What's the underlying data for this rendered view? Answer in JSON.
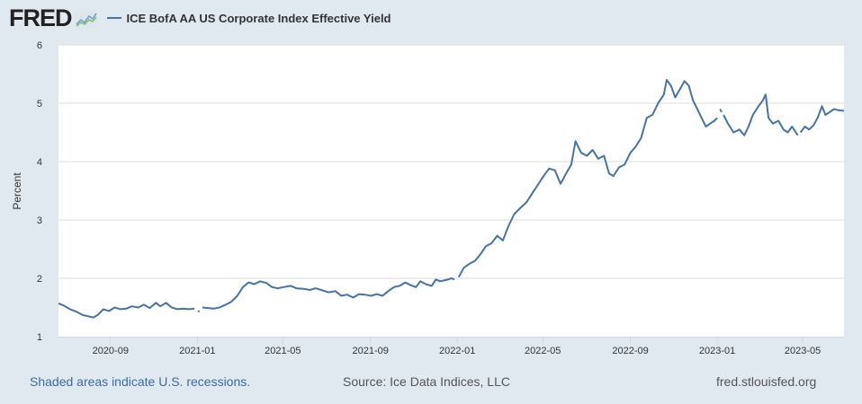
{
  "header": {
    "logo_text": "FRED",
    "logo_icon": "fred-chart-icon",
    "legend_label": "ICE BofA AA US Corporate Index Effective Yield"
  },
  "footer": {
    "recession_note": "Shaded areas indicate U.S. recessions.",
    "source": "Source: Ice Data Indices, LLC",
    "site": "fred.stlouisfed.org"
  },
  "colors": {
    "series": "#4572a7",
    "background": "#e1e9f0",
    "plot_background": "#ffffff",
    "gridline": "#dddddd"
  },
  "chart_data": {
    "type": "line",
    "title": "ICE BofA AA US Corporate Index Effective Yield",
    "xlabel": "",
    "ylabel": "Percent",
    "ylim": [
      1,
      6
    ],
    "xlim": [
      "2020-06-20",
      "2023-06-28"
    ],
    "yticks": [
      "1",
      "2",
      "3",
      "4",
      "5",
      "6"
    ],
    "xticks": [
      "2020-09",
      "2021-01",
      "2021-05",
      "2021-09",
      "2022-01",
      "2022-05",
      "2022-09",
      "2023-01",
      "2023-05"
    ],
    "grid": true,
    "legend": "top-left",
    "series": [
      {
        "name": "ICE BofA AA US Corporate Index Effective Yield",
        "segments": [
          [
            [
              "2020-06-20",
              1.57
            ],
            [
              "2020-06-28",
              1.53
            ],
            [
              "2020-07-06",
              1.47
            ],
            [
              "2020-07-15",
              1.43
            ],
            [
              "2020-07-24",
              1.37
            ],
            [
              "2020-08-01",
              1.35
            ],
            [
              "2020-08-08",
              1.33
            ],
            [
              "2020-08-14",
              1.37
            ],
            [
              "2020-08-22",
              1.47
            ],
            [
              "2020-08-30",
              1.44
            ],
            [
              "2020-09-07",
              1.5
            ],
            [
              "2020-09-15",
              1.47
            ],
            [
              "2020-09-23",
              1.48
            ],
            [
              "2020-10-01",
              1.52
            ],
            [
              "2020-10-10",
              1.5
            ],
            [
              "2020-10-18",
              1.55
            ],
            [
              "2020-10-26",
              1.49
            ],
            [
              "2020-11-04",
              1.58
            ],
            [
              "2020-11-10",
              1.52
            ],
            [
              "2020-11-18",
              1.58
            ],
            [
              "2020-11-26",
              1.5
            ],
            [
              "2020-12-04",
              1.47
            ],
            [
              "2020-12-12",
              1.48
            ],
            [
              "2020-12-20",
              1.47
            ],
            [
              "2020-12-28",
              1.48
            ]
          ],
          [
            [
              "2021-01-02",
              1.44
            ],
            [
              "2021-01-04",
              1.43
            ]
          ],
          [
            [
              "2021-01-08",
              1.5
            ],
            [
              "2021-01-16",
              1.49
            ],
            [
              "2021-01-24",
              1.48
            ],
            [
              "2021-02-01",
              1.5
            ],
            [
              "2021-02-10",
              1.55
            ],
            [
              "2021-02-18",
              1.6
            ],
            [
              "2021-02-26",
              1.7
            ],
            [
              "2021-03-06",
              1.85
            ],
            [
              "2021-03-14",
              1.93
            ],
            [
              "2021-03-22",
              1.9
            ],
            [
              "2021-03-30",
              1.95
            ],
            [
              "2021-04-08",
              1.92
            ],
            [
              "2021-04-16",
              1.85
            ],
            [
              "2021-04-24",
              1.83
            ],
            [
              "2021-05-02",
              1.85
            ],
            [
              "2021-05-12",
              1.87
            ],
            [
              "2021-05-20",
              1.83
            ],
            [
              "2021-05-30",
              1.82
            ],
            [
              "2021-06-08",
              1.8
            ],
            [
              "2021-06-16",
              1.83
            ],
            [
              "2021-06-24",
              1.8
            ],
            [
              "2021-07-04",
              1.76
            ],
            [
              "2021-07-14",
              1.78
            ],
            [
              "2021-07-22",
              1.7
            ],
            [
              "2021-07-30",
              1.72
            ],
            [
              "2021-08-08",
              1.67
            ],
            [
              "2021-08-16",
              1.73
            ],
            [
              "2021-08-24",
              1.72
            ],
            [
              "2021-09-02",
              1.7
            ],
            [
              "2021-09-10",
              1.73
            ],
            [
              "2021-09-18",
              1.7
            ],
            [
              "2021-09-26",
              1.78
            ],
            [
              "2021-10-04",
              1.85
            ],
            [
              "2021-10-12",
              1.87
            ],
            [
              "2021-10-20",
              1.93
            ],
            [
              "2021-10-28",
              1.88
            ],
            [
              "2021-11-04",
              1.85
            ],
            [
              "2021-11-10",
              1.95
            ],
            [
              "2021-11-18",
              1.9
            ],
            [
              "2021-11-26",
              1.87
            ],
            [
              "2021-12-02",
              1.98
            ],
            [
              "2021-12-08",
              1.95
            ],
            [
              "2021-12-16",
              1.97
            ],
            [
              "2021-12-24",
              2.0
            ],
            [
              "2021-12-28",
              1.98
            ]
          ],
          [
            [
              "2022-01-03",
              2.02
            ],
            [
              "2022-01-10",
              2.18
            ],
            [
              "2022-01-18",
              2.25
            ],
            [
              "2022-01-26",
              2.3
            ],
            [
              "2022-02-03",
              2.42
            ],
            [
              "2022-02-10",
              2.55
            ],
            [
              "2022-02-18",
              2.6
            ],
            [
              "2022-02-26",
              2.73
            ],
            [
              "2022-03-06",
              2.65
            ],
            [
              "2022-03-14",
              2.9
            ],
            [
              "2022-03-22",
              3.1
            ],
            [
              "2022-03-30",
              3.2
            ],
            [
              "2022-04-08",
              3.3
            ],
            [
              "2022-04-16",
              3.45
            ],
            [
              "2022-04-24",
              3.6
            ],
            [
              "2022-05-02",
              3.75
            ],
            [
              "2022-05-10",
              3.88
            ],
            [
              "2022-05-18",
              3.85
            ],
            [
              "2022-05-26",
              3.62
            ],
            [
              "2022-06-03",
              3.8
            ],
            [
              "2022-06-10",
              3.95
            ],
            [
              "2022-06-16",
              4.35
            ],
            [
              "2022-06-24",
              4.15
            ],
            [
              "2022-07-02",
              4.1
            ],
            [
              "2022-07-10",
              4.2
            ],
            [
              "2022-07-18",
              4.05
            ],
            [
              "2022-07-26",
              4.1
            ],
            [
              "2022-08-02",
              3.8
            ],
            [
              "2022-08-08",
              3.75
            ],
            [
              "2022-08-16",
              3.9
            ],
            [
              "2022-08-24",
              3.95
            ],
            [
              "2022-09-01",
              4.15
            ],
            [
              "2022-09-08",
              4.25
            ],
            [
              "2022-09-16",
              4.4
            ],
            [
              "2022-09-24",
              4.75
            ],
            [
              "2022-10-02",
              4.8
            ],
            [
              "2022-10-10",
              5.0
            ],
            [
              "2022-10-18",
              5.15
            ],
            [
              "2022-10-22",
              5.4
            ],
            [
              "2022-10-28",
              5.3
            ],
            [
              "2022-11-03",
              5.1
            ],
            [
              "2022-11-10",
              5.25
            ],
            [
              "2022-11-16",
              5.38
            ],
            [
              "2022-11-22",
              5.3
            ],
            [
              "2022-11-28",
              5.05
            ],
            [
              "2022-12-04",
              4.9
            ],
            [
              "2022-12-10",
              4.75
            ],
            [
              "2022-12-16",
              4.6
            ],
            [
              "2022-12-22",
              4.65
            ],
            [
              "2022-12-28",
              4.7
            ],
            [
              "2023-01-01",
              4.75
            ]
          ],
          [
            [
              "2023-01-05",
              4.9
            ],
            [
              "2023-01-07",
              4.85
            ]
          ],
          [
            [
              "2023-01-10",
              4.8
            ],
            [
              "2023-01-16",
              4.65
            ],
            [
              "2023-01-24",
              4.5
            ],
            [
              "2023-02-01",
              4.55
            ],
            [
              "2023-02-08",
              4.45
            ],
            [
              "2023-02-14",
              4.6
            ],
            [
              "2023-02-20",
              4.8
            ],
            [
              "2023-02-28",
              4.95
            ],
            [
              "2023-03-06",
              5.05
            ],
            [
              "2023-03-10",
              5.15
            ],
            [
              "2023-03-14",
              4.75
            ],
            [
              "2023-03-20",
              4.65
            ],
            [
              "2023-03-28",
              4.7
            ],
            [
              "2023-04-04",
              4.55
            ],
            [
              "2023-04-10",
              4.5
            ],
            [
              "2023-04-16",
              4.6
            ],
            [
              "2023-04-24",
              4.45
            ]
          ],
          [
            [
              "2023-04-28",
              4.5
            ],
            [
              "2023-05-04",
              4.6
            ],
            [
              "2023-05-10",
              4.55
            ],
            [
              "2023-05-16",
              4.62
            ],
            [
              "2023-05-22",
              4.75
            ],
            [
              "2023-05-28",
              4.95
            ],
            [
              "2023-06-02",
              4.8
            ],
            [
              "2023-06-08",
              4.85
            ],
            [
              "2023-06-14",
              4.9
            ],
            [
              "2023-06-20",
              4.88
            ],
            [
              "2023-06-28",
              4.87
            ]
          ]
        ]
      }
    ]
  }
}
